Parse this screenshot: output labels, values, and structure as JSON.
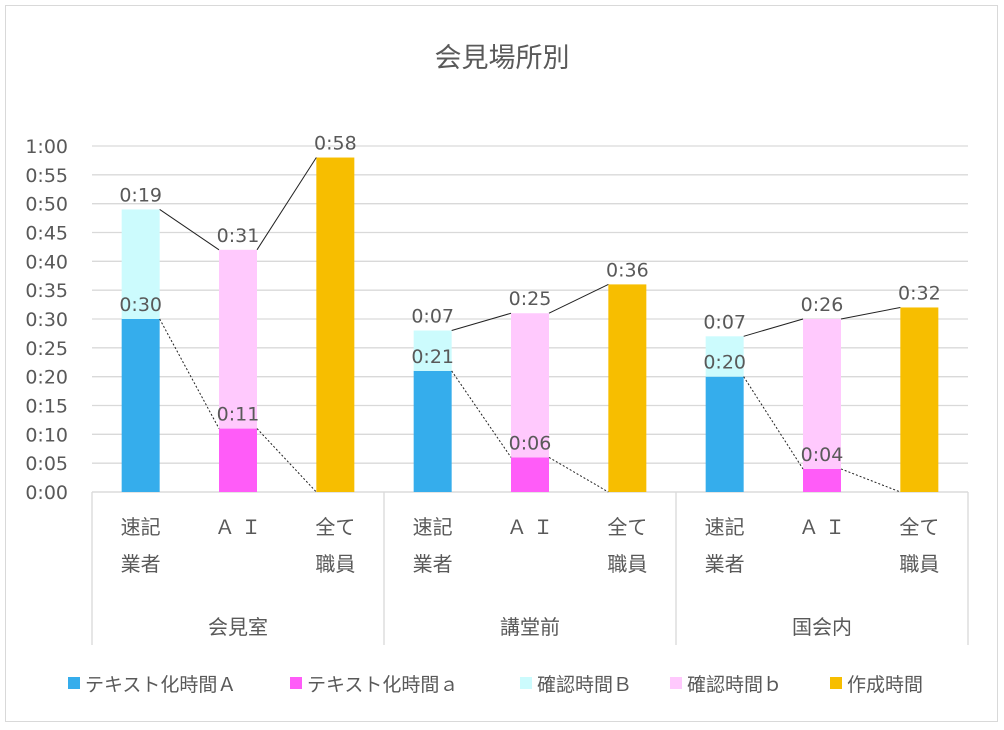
{
  "chart_data": {
    "type": "bar",
    "stacked": true,
    "title": "会見場所別",
    "ylim": [
      0,
      60
    ],
    "y_unit": "minutes",
    "yticks": [
      "0:00",
      "0:05",
      "0:10",
      "0:15",
      "0:20",
      "0:25",
      "0:30",
      "0:35",
      "0:40",
      "0:45",
      "0:50",
      "0:55",
      "1:00"
    ],
    "grid": true,
    "legend_position": "bottom",
    "groups": [
      {
        "label": "会見室",
        "categories": [
          {
            "label": [
              "速記",
              "業者"
            ],
            "segments": [
              {
                "series": 0,
                "value": 30,
                "label": "0:30"
              },
              {
                "series": 2,
                "value": 19,
                "label": "0:19"
              }
            ]
          },
          {
            "label": [
              "Ａ Ｉ"
            ],
            "segments": [
              {
                "series": 1,
                "value": 11,
                "label": "0:11"
              },
              {
                "series": 3,
                "value": 31,
                "label": "0:31"
              }
            ]
          },
          {
            "label": [
              "全て",
              "職員"
            ],
            "segments": [
              {
                "series": 4,
                "value": 58,
                "label": "0:58"
              }
            ]
          }
        ]
      },
      {
        "label": "講堂前",
        "categories": [
          {
            "label": [
              "速記",
              "業者"
            ],
            "segments": [
              {
                "series": 0,
                "value": 21,
                "label": "0:21"
              },
              {
                "series": 2,
                "value": 7,
                "label": "0:07"
              }
            ]
          },
          {
            "label": [
              "Ａ Ｉ"
            ],
            "segments": [
              {
                "series": 1,
                "value": 6,
                "label": "0:06"
              },
              {
                "series": 3,
                "value": 25,
                "label": "0:25"
              }
            ]
          },
          {
            "label": [
              "全て",
              "職員"
            ],
            "segments": [
              {
                "series": 4,
                "value": 36,
                "label": "0:36"
              }
            ]
          }
        ]
      },
      {
        "label": "国会内",
        "categories": [
          {
            "label": [
              "速記",
              "業者"
            ],
            "segments": [
              {
                "series": 0,
                "value": 20,
                "label": "0:20"
              },
              {
                "series": 2,
                "value": 7,
                "label": "0:07"
              }
            ]
          },
          {
            "label": [
              "Ａ Ｉ"
            ],
            "segments": [
              {
                "series": 1,
                "value": 4,
                "label": "0:04"
              },
              {
                "series": 3,
                "value": 26,
                "label": "0:26"
              }
            ]
          },
          {
            "label": [
              "全て",
              "職員"
            ],
            "segments": [
              {
                "series": 4,
                "value": 32,
                "label": "0:32"
              }
            ]
          }
        ]
      }
    ],
    "series": [
      {
        "name": "テキスト化時間Ａ",
        "color": "#35adec"
      },
      {
        "name": "テキスト化時間ａ",
        "color": "#ff5cf8"
      },
      {
        "name": "確認時間Ｂ",
        "color": "#ccfbfd"
      },
      {
        "name": "確認時間ｂ",
        "color": "#ffc9fd"
      },
      {
        "name": "作成時間",
        "color": "#f7be00"
      }
    ],
    "series_lines": {
      "total": "solid",
      "first_segment": "dashed"
    }
  }
}
